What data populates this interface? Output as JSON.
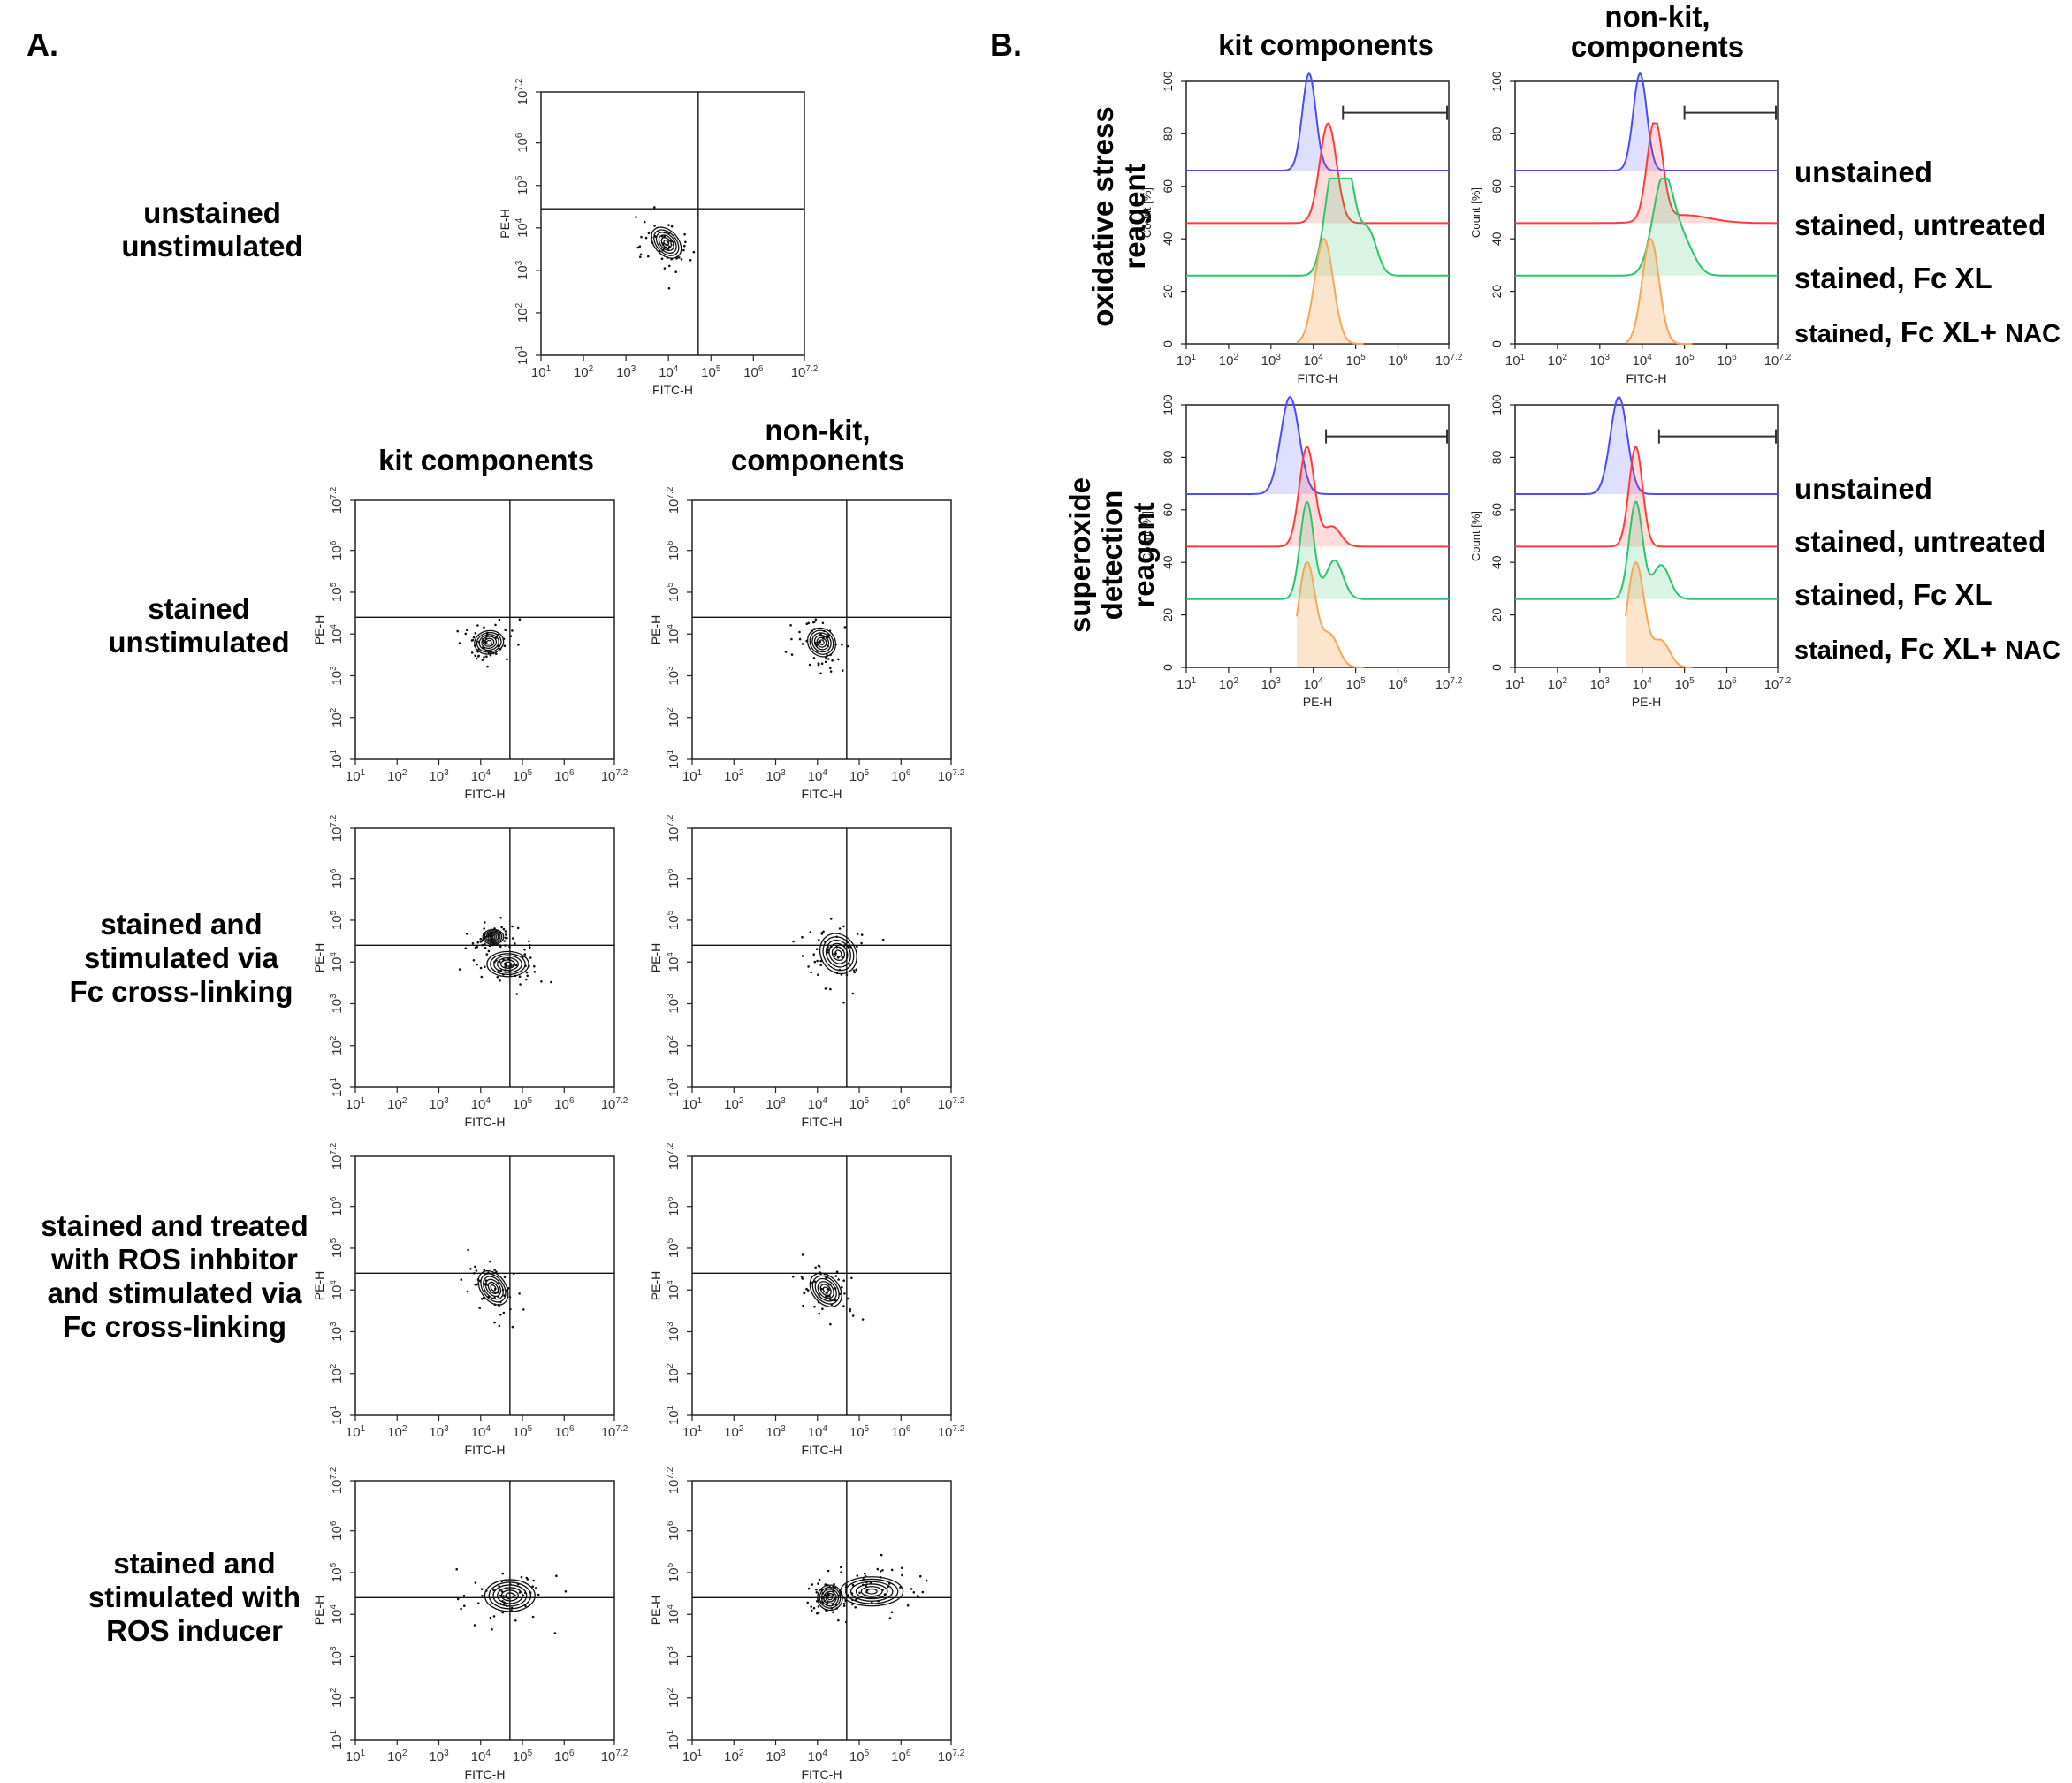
{
  "panel_a": {
    "label": "A.",
    "column_headers": {
      "kit": "kit components",
      "nonkit_line1": "non-kit,",
      "nonkit_line2": "components"
    },
    "row_labels": {
      "unstained": [
        "unstained",
        "unstimulated"
      ],
      "stained": [
        "stained",
        "unstimulated"
      ],
      "fcxl": [
        "stained and",
        "stimulated via",
        "Fc cross-linking"
      ],
      "inhibitor": [
        "stained and treated",
        "with ROS inhbitor",
        "and stimulated via",
        "Fc cross-linking"
      ],
      "inducer": [
        "stained and",
        "stimulated with",
        "ROS inducer"
      ]
    }
  },
  "panel_b": {
    "label": "B.",
    "column_headers": {
      "kit": "kit components",
      "nonkit_line1": "non-kit,",
      "nonkit_line2": "components"
    },
    "row_headers": {
      "oxidative": [
        "oxidative stress",
        "reagent"
      ],
      "superoxide": [
        "superoxide",
        "detection",
        "reagent"
      ]
    },
    "legend_labels": [
      "unstained",
      "stained, untreated",
      "stained, Fc XL"
    ],
    "legend_last": {
      "prefix": "stained",
      "mid": ", Fc XL+ ",
      "suffix": "NAC"
    }
  },
  "axes": {
    "fitc_label": "FITC-H",
    "pe_label": "PE-H",
    "count_label": "Count [%]",
    "tick_labels": [
      "10",
      "10",
      "10",
      "10",
      "10",
      "10",
      "10"
    ],
    "tick_exponents": [
      "1",
      "2",
      "3",
      "4",
      "5",
      "6",
      "7.2"
    ],
    "count_ticks": [
      "0",
      "20",
      "40",
      "60",
      "80",
      "100"
    ]
  },
  "colors": {
    "unstained": "#4b4bff",
    "untreated": "#ff3b3b",
    "fcxl": "#2ec46a",
    "nac": "#f5a65b"
  },
  "chart_data": [
    {
      "type": "scatter",
      "title": "contour: unstained unstimulated",
      "xlabel": "FITC-H",
      "ylabel": "PE-H",
      "xlim": [
        10,
        15848932
      ],
      "ylim": [
        10,
        15848932
      ],
      "gate_x_log": 4.7,
      "gate_y_log": 4.45,
      "clusters": [
        {
          "x_log": 3.95,
          "y_log": 3.65,
          "sx": 0.28,
          "sy": 0.42,
          "rot": 42
        }
      ]
    },
    {
      "type": "scatter",
      "title": "contour: kit stained unstimulated",
      "xlabel": "FITC-H",
      "ylabel": "PE-H",
      "xlim": [
        10,
        15848932
      ],
      "ylim": [
        10,
        15848932
      ],
      "gate_x_log": 4.7,
      "gate_y_log": 4.4,
      "clusters": [
        {
          "x_log": 4.2,
          "y_log": 3.8,
          "sx": 0.35,
          "sy": 0.28,
          "rot": 10
        }
      ]
    },
    {
      "type": "scatter",
      "title": "contour: non-kit stained unstimulated",
      "xlabel": "FITC-H",
      "ylabel": "PE-H",
      "xlim": [
        10,
        15848932
      ],
      "ylim": [
        10,
        15848932
      ],
      "gate_x_log": 4.7,
      "gate_y_log": 4.4,
      "clusters": [
        {
          "x_log": 4.1,
          "y_log": 3.8,
          "sx": 0.32,
          "sy": 0.36,
          "rot": 40
        }
      ]
    },
    {
      "type": "scatter",
      "title": "contour: kit Fc cross-linking",
      "xlabel": "FITC-H",
      "ylabel": "PE-H",
      "xlim": [
        10,
        15848932
      ],
      "ylim": [
        10,
        15848932
      ],
      "gate_x_log": 4.7,
      "gate_y_log": 4.4,
      "clusters": [
        {
          "x_log": 4.65,
          "y_log": 3.95,
          "sx": 0.5,
          "sy": 0.3,
          "rot": 0
        },
        {
          "x_log": 4.3,
          "y_log": 4.6,
          "sx": 0.25,
          "sy": 0.18,
          "rot": 0
        }
      ]
    },
    {
      "type": "scatter",
      "title": "contour: non-kit Fc cross-linking",
      "xlabel": "FITC-H",
      "ylabel": "PE-H",
      "xlim": [
        10,
        15848932
      ],
      "ylim": [
        10,
        15848932
      ],
      "gate_x_log": 4.7,
      "gate_y_log": 4.4,
      "clusters": [
        {
          "x_log": 4.5,
          "y_log": 4.2,
          "sx": 0.42,
          "sy": 0.5,
          "rot": 30
        }
      ]
    },
    {
      "type": "scatter",
      "title": "contour: kit ROS inhibitor + Fc XL",
      "xlabel": "FITC-H",
      "ylabel": "PE-H",
      "xlim": [
        10,
        15848932
      ],
      "ylim": [
        10,
        15848932
      ],
      "gate_x_log": 4.7,
      "gate_y_log": 4.4,
      "clusters": [
        {
          "x_log": 4.3,
          "y_log": 4.05,
          "sx": 0.3,
          "sy": 0.45,
          "rot": 35
        }
      ]
    },
    {
      "type": "scatter",
      "title": "contour: non-kit ROS inhibitor + Fc XL",
      "xlabel": "FITC-H",
      "ylabel": "PE-H",
      "xlim": [
        10,
        15848932
      ],
      "ylim": [
        10,
        15848932
      ],
      "gate_x_log": 4.7,
      "gate_y_log": 4.4,
      "clusters": [
        {
          "x_log": 4.2,
          "y_log": 4.0,
          "sx": 0.32,
          "sy": 0.45,
          "rot": 40
        }
      ]
    },
    {
      "type": "scatter",
      "title": "contour: kit ROS inducer",
      "xlabel": "FITC-H",
      "ylabel": "PE-H",
      "xlim": [
        10,
        15848932
      ],
      "ylim": [
        10,
        15848932
      ],
      "gate_x_log": 4.7,
      "gate_y_log": 4.4,
      "clusters": [
        {
          "x_log": 4.7,
          "y_log": 4.45,
          "sx": 0.6,
          "sy": 0.38,
          "rot": 0
        }
      ]
    },
    {
      "type": "scatter",
      "title": "contour: non-kit ROS inducer",
      "xlabel": "FITC-H",
      "ylabel": "PE-H",
      "xlim": [
        10,
        15848932
      ],
      "ylim": [
        10,
        15848932
      ],
      "gate_x_log": 4.7,
      "gate_y_log": 4.4,
      "clusters": [
        {
          "x_log": 4.3,
          "y_log": 4.4,
          "sx": 0.3,
          "sy": 0.3,
          "rot": 0
        },
        {
          "x_log": 5.3,
          "y_log": 4.55,
          "sx": 0.75,
          "sy": 0.35,
          "rot": 0
        }
      ]
    },
    {
      "type": "area",
      "title": "histogram: oxidative stress reagent, kit components",
      "xlabel": "FITC-H",
      "ylabel": "Count [%]",
      "xlim": [
        10,
        15848932
      ],
      "ylim": [
        0,
        100
      ],
      "gate_x_log": [
        4.7,
        7.2
      ],
      "series": [
        {
          "name": "unstained",
          "offset": 66,
          "height": 37,
          "peaks": [
            {
              "c": 3.9,
              "w": 0.16,
              "a": 1
            }
          ]
        },
        {
          "name": "stained, untreated",
          "offset": 46,
          "height": 38,
          "peaks": [
            {
              "c": 4.35,
              "w": 0.2,
              "a": 1
            }
          ]
        },
        {
          "name": "stained, Fc XL",
          "offset": 26,
          "height": 37,
          "peaks": [
            {
              "c": 4.45,
              "w": 0.2,
              "a": 0.95
            },
            {
              "c": 4.8,
              "w": 0.2,
              "a": 1
            },
            {
              "c": 5.3,
              "w": 0.2,
              "a": 0.45
            }
          ]
        },
        {
          "name": "stained, Fc XL+ NAC",
          "offset": 0,
          "height": 40,
          "peaks": [
            {
              "c": 4.25,
              "w": 0.22,
              "a": 1
            }
          ]
        }
      ]
    },
    {
      "type": "area",
      "title": "histogram: oxidative stress reagent, non-kit components",
      "xlabel": "FITC-H",
      "ylabel": "Count [%]",
      "xlim": [
        10,
        15848932
      ],
      "ylim": [
        0,
        100
      ],
      "gate_x_log": [
        5.0,
        7.2
      ],
      "series": [
        {
          "name": "unstained",
          "offset": 66,
          "height": 37,
          "peaks": [
            {
              "c": 3.95,
              "w": 0.16,
              "a": 1
            }
          ]
        },
        {
          "name": "stained, untreated",
          "offset": 46,
          "height": 38,
          "peaks": [
            {
              "c": 4.3,
              "w": 0.18,
              "a": 1
            },
            {
              "c": 5.0,
              "w": 0.6,
              "a": 0.08
            }
          ]
        },
        {
          "name": "stained, Fc XL",
          "offset": 26,
          "height": 37,
          "peaks": [
            {
              "c": 4.5,
              "w": 0.25,
              "a": 1
            },
            {
              "c": 5.0,
              "w": 0.25,
              "a": 0.3
            }
          ]
        },
        {
          "name": "stained, Fc XL+ NAC",
          "offset": 0,
          "height": 40,
          "peaks": [
            {
              "c": 4.2,
              "w": 0.2,
              "a": 1
            }
          ]
        }
      ]
    },
    {
      "type": "area",
      "title": "histogram: superoxide detection reagent, kit components",
      "xlabel": "PE-H",
      "ylabel": "Count [%]",
      "xlim": [
        10,
        15848932
      ],
      "ylim": [
        0,
        100
      ],
      "gate_x_log": [
        4.3,
        7.2
      ],
      "series": [
        {
          "name": "unstained",
          "offset": 66,
          "height": 37,
          "peaks": [
            {
              "c": 3.45,
              "w": 0.22,
              "a": 1
            }
          ]
        },
        {
          "name": "stained, untreated",
          "offset": 46,
          "height": 38,
          "peaks": [
            {
              "c": 3.85,
              "w": 0.18,
              "a": 1
            },
            {
              "c": 4.45,
              "w": 0.2,
              "a": 0.2
            }
          ]
        },
        {
          "name": "stained, Fc XL",
          "offset": 26,
          "height": 37,
          "peaks": [
            {
              "c": 3.85,
              "w": 0.16,
              "a": 1
            },
            {
              "c": 4.5,
              "w": 0.2,
              "a": 0.4
            }
          ]
        },
        {
          "name": "stained, Fc XL+ NAC",
          "offset": 0,
          "height": 40,
          "peaks": [
            {
              "c": 3.85,
              "w": 0.2,
              "a": 1
            },
            {
              "c": 4.4,
              "w": 0.2,
              "a": 0.3
            }
          ]
        }
      ]
    },
    {
      "type": "area",
      "title": "histogram: superoxide detection reagent, non-kit components",
      "xlabel": "PE-H",
      "ylabel": "Count [%]",
      "xlim": [
        10,
        15848932
      ],
      "ylim": [
        0,
        100
      ],
      "gate_x_log": [
        4.4,
        7.2
      ],
      "series": [
        {
          "name": "unstained",
          "offset": 66,
          "height": 37,
          "peaks": [
            {
              "c": 3.45,
              "w": 0.2,
              "a": 1
            }
          ]
        },
        {
          "name": "stained, untreated",
          "offset": 46,
          "height": 38,
          "peaks": [
            {
              "c": 3.85,
              "w": 0.16,
              "a": 1
            }
          ]
        },
        {
          "name": "stained, Fc XL",
          "offset": 26,
          "height": 37,
          "peaks": [
            {
              "c": 3.85,
              "w": 0.16,
              "a": 1
            },
            {
              "c": 4.45,
              "w": 0.2,
              "a": 0.35
            }
          ]
        },
        {
          "name": "stained, Fc XL+ NAC",
          "offset": 0,
          "height": 40,
          "peaks": [
            {
              "c": 3.85,
              "w": 0.2,
              "a": 1
            },
            {
              "c": 4.45,
              "w": 0.2,
              "a": 0.25
            }
          ]
        }
      ]
    }
  ]
}
